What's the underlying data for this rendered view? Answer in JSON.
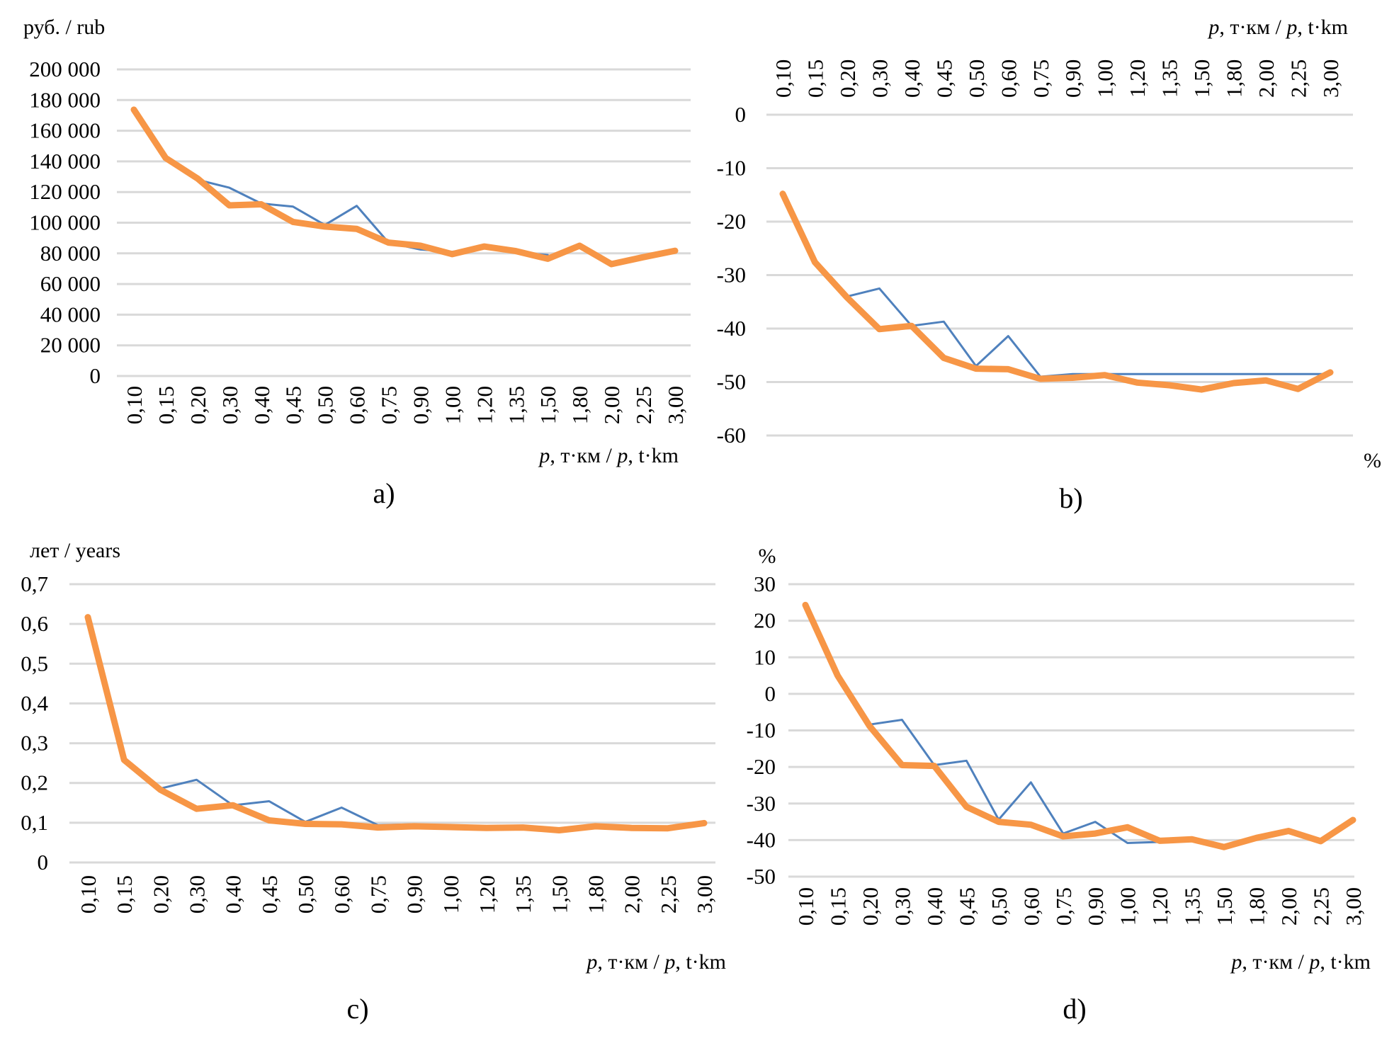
{
  "figure": {
    "colors": {
      "series_a": "#4F81BD",
      "series_b": "#F79646",
      "grid": "#D9D9D9"
    }
  },
  "chart_data": [
    {
      "id": "a",
      "type": "line",
      "panel_label": "a)",
      "title": "",
      "ylabel": "руб. / rub",
      "xlabel": "p, т·км / p, t·km",
      "xlabel_parts": [
        "p",
        ", т·км / ",
        "p",
        ", t·km"
      ],
      "x_axis_position": "bottom",
      "categories": [
        "0,10",
        "0,15",
        "0,20",
        "0,30",
        "0,40",
        "0,45",
        "0,50",
        "0,60",
        "0,75",
        "0,90",
        "1,00",
        "1,20",
        "1,35",
        "1,50",
        "1,80",
        "2,00",
        "2,25",
        "3,00"
      ],
      "ylim": [
        0,
        200000
      ],
      "yticks": [
        0,
        20000,
        40000,
        60000,
        80000,
        100000,
        120000,
        140000,
        160000,
        180000,
        200000
      ],
      "ytick_labels": [
        "0",
        "20 000",
        "40 000",
        "60 000",
        "80 000",
        "100 000",
        "120 000",
        "140 000",
        "160 000",
        "180 000",
        "200 000"
      ],
      "grid": true,
      "legend": "none",
      "series": [
        {
          "name": "series 1 (thin, blue)",
          "color": "#4F81BD",
          "values": [
            null,
            null,
            128000,
            122800,
            112500,
            110500,
            98500,
            111000,
            87000,
            82500,
            81000,
            84000,
            80500,
            79000,
            null,
            null,
            null,
            null
          ]
        },
        {
          "name": "series 2 (thick, orange)",
          "color": "#F79646",
          "values": [
            173700,
            142200,
            128800,
            111300,
            112000,
            100500,
            97500,
            96000,
            87000,
            85000,
            79500,
            84500,
            81500,
            76500,
            85000,
            73000,
            77500,
            81700
          ]
        }
      ]
    },
    {
      "id": "b",
      "type": "line",
      "panel_label": "b)",
      "title": "",
      "ylabel": "%",
      "xlabel": "p, т·км / p, t·km",
      "xlabel_parts": [
        "p",
        ", т·км / ",
        "p",
        ", t·km"
      ],
      "x_axis_position": "top",
      "categories": [
        "0,10",
        "0,15",
        "0,20",
        "0,30",
        "0,40",
        "0,45",
        "0,50",
        "0,60",
        "0,75",
        "0,90",
        "1,00",
        "1,20",
        "1,35",
        "1,50",
        "1,80",
        "2,00",
        "2,25",
        "3,00"
      ],
      "ylim": [
        -60,
        0
      ],
      "yticks": [
        -60,
        -50,
        -40,
        -30,
        -20,
        -10,
        0
      ],
      "ytick_labels": [
        "-60",
        "-50",
        "-40",
        "-30",
        "-20",
        "-10",
        "0"
      ],
      "grid": true,
      "legend": "none",
      "series": [
        {
          "name": "series 1 (thin, blue)",
          "color": "#4F81BD",
          "values": [
            null,
            null,
            -34.0,
            -32.5,
            -39.5,
            -38.7,
            -47.0,
            -41.4,
            -49.0,
            -48.5,
            -48.5,
            -48.5,
            -48.5,
            -48.5,
            -48.5,
            -48.5,
            -48.5,
            -48.5
          ]
        },
        {
          "name": "series 2 (thick, orange)",
          "color": "#F79646",
          "values": [
            -14.8,
            -27.6,
            -34.2,
            -40.1,
            -39.5,
            -45.5,
            -47.5,
            -47.6,
            -49.4,
            -49.2,
            -48.7,
            -50.1,
            -50.6,
            -51.4,
            -50.2,
            -49.7,
            -51.3,
            -48.2
          ]
        }
      ]
    },
    {
      "id": "c",
      "type": "line",
      "panel_label": "c)",
      "title": "",
      "ylabel": "лет / years",
      "xlabel": "p, т·км / p, t·km",
      "xlabel_parts": [
        "p",
        ", т·км / ",
        "p",
        ", t·km"
      ],
      "x_axis_position": "bottom",
      "categories": [
        "0,10",
        "0,15",
        "0,20",
        "0,30",
        "0,40",
        "0,45",
        "0,50",
        "0,60",
        "0,75",
        "0,90",
        "1,00",
        "1,20",
        "1,35",
        "1,50",
        "1,80",
        "2,00",
        "2,25",
        "3,00"
      ],
      "ylim": [
        0,
        0.7
      ],
      "yticks": [
        0,
        0.1,
        0.2,
        0.3,
        0.4,
        0.5,
        0.6,
        0.7
      ],
      "ytick_labels": [
        "0",
        "0,1",
        "0,2",
        "0,3",
        "0,4",
        "0,5",
        "0,6",
        "0,7"
      ],
      "grid": true,
      "legend": "none",
      "series": [
        {
          "name": "series 1 (thin, blue)",
          "color": "#4F81BD",
          "values": [
            null,
            null,
            0.186,
            0.208,
            0.144,
            0.154,
            0.102,
            0.138,
            0.094,
            0.096,
            0.09,
            0.088,
            0.088,
            0.082,
            0.091,
            0.087,
            0.086,
            0.099
          ]
        },
        {
          "name": "series 2 (thick, orange)",
          "color": "#F79646",
          "values": [
            0.617,
            0.258,
            0.183,
            0.135,
            0.144,
            0.106,
            0.097,
            0.096,
            0.088,
            0.091,
            0.089,
            0.087,
            0.088,
            0.081,
            0.091,
            0.087,
            0.086,
            0.099
          ]
        }
      ]
    },
    {
      "id": "d",
      "type": "line",
      "panel_label": "d)",
      "title": "",
      "ylabel": "%",
      "xlabel": "p, т·км / p, t·km",
      "xlabel_parts": [
        "p",
        ", т·км / ",
        "p",
        ", t·km"
      ],
      "x_axis_position": "bottom",
      "categories": [
        "0,10",
        "0,15",
        "0,20",
        "0,30",
        "0,40",
        "0,45",
        "0,50",
        "0,60",
        "0,75",
        "0,90",
        "1,00",
        "1,20",
        "1,35",
        "1,50",
        "1,80",
        "2,00",
        "2,25",
        "3,00"
      ],
      "ylim": [
        -50,
        30
      ],
      "yticks": [
        -50,
        -40,
        -30,
        -20,
        -10,
        0,
        10,
        20,
        30
      ],
      "ytick_labels": [
        "-50",
        "-40",
        "-30",
        "-20",
        "-10",
        "0",
        "10",
        "20",
        "30"
      ],
      "grid": true,
      "legend": "none",
      "series": [
        {
          "name": "series 1 (thin, blue)",
          "color": "#4F81BD",
          "values": [
            null,
            null,
            -8.4,
            -7.1,
            -19.5,
            -18.3,
            -34.4,
            -24.2,
            -38.2,
            -35.0,
            -40.8,
            -40.5,
            null,
            null,
            null,
            null,
            null,
            null
          ]
        },
        {
          "name": "series 2 (thick, orange)",
          "color": "#F79646",
          "values": [
            24.3,
            5.0,
            -8.9,
            -19.5,
            -19.7,
            -30.9,
            -35.0,
            -35.8,
            -39.0,
            -38.2,
            -36.5,
            -40.2,
            -39.8,
            -41.9,
            -39.4,
            -37.5,
            -40.3,
            -34.5
          ]
        }
      ]
    }
  ]
}
